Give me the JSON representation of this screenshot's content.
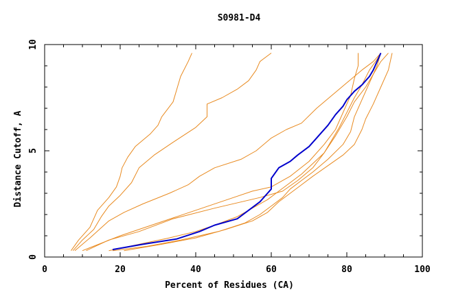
{
  "chart_data": {
    "type": "line",
    "title": "S0981-D4",
    "xlabel": "Percent of Residues (CA)",
    "ylabel": "Distance Cutoff, A",
    "xlim": [
      0,
      100
    ],
    "ylim": [
      0,
      10
    ],
    "x_ticks": [
      0,
      20,
      40,
      60,
      80,
      100
    ],
    "y_ticks": [
      0,
      5,
      10
    ],
    "grid": false,
    "colors": {
      "highlight": "#0000cc",
      "other": "#e8891e"
    },
    "series": [
      {
        "highlight": false,
        "points": [
          [
            7,
            0.3
          ],
          [
            9,
            0.8
          ],
          [
            12,
            1.4
          ],
          [
            14,
            2.2
          ],
          [
            17,
            2.8
          ],
          [
            19,
            3.3
          ],
          [
            20,
            3.8
          ],
          [
            20.5,
            4.2
          ],
          [
            22,
            4.7
          ],
          [
            24,
            5.2
          ],
          [
            28,
            5.8
          ],
          [
            30,
            6.2
          ],
          [
            31,
            6.6
          ],
          [
            34,
            7.3
          ],
          [
            35,
            7.9
          ],
          [
            36,
            8.5
          ],
          [
            38,
            9.2
          ],
          [
            39,
            9.6
          ]
        ]
      },
      {
        "highlight": false,
        "points": [
          [
            7.5,
            0.3
          ],
          [
            10,
            0.8
          ],
          [
            13,
            1.3
          ],
          [
            15,
            1.9
          ],
          [
            17,
            2.4
          ],
          [
            20,
            2.9
          ],
          [
            23,
            3.5
          ],
          [
            25,
            4.2
          ],
          [
            29,
            4.8
          ],
          [
            34,
            5.4
          ],
          [
            40,
            6.1
          ],
          [
            43,
            6.6
          ],
          [
            43,
            7.2
          ],
          [
            47,
            7.5
          ],
          [
            51,
            7.9
          ],
          [
            54,
            8.3
          ],
          [
            56,
            8.8
          ],
          [
            57,
            9.2
          ],
          [
            60,
            9.6
          ]
        ]
      },
      {
        "highlight": false,
        "points": [
          [
            8,
            0.3
          ],
          [
            12,
            0.9
          ],
          [
            17,
            1.7
          ],
          [
            21,
            2.1
          ],
          [
            26,
            2.5
          ],
          [
            33,
            3.0
          ],
          [
            38,
            3.4
          ],
          [
            41,
            3.8
          ],
          [
            45,
            4.2
          ],
          [
            52,
            4.6
          ],
          [
            56,
            5.0
          ],
          [
            60,
            5.6
          ],
          [
            64,
            6.0
          ],
          [
            68,
            6.3
          ],
          [
            72,
            7.0
          ],
          [
            76,
            7.6
          ],
          [
            80,
            8.2
          ],
          [
            84,
            8.8
          ],
          [
            87,
            9.2
          ],
          [
            89,
            9.6
          ]
        ]
      },
      {
        "highlight": false,
        "points": [
          [
            11,
            0.3
          ],
          [
            17,
            0.8
          ],
          [
            25,
            1.2
          ],
          [
            34,
            1.8
          ],
          [
            45,
            2.3
          ],
          [
            57,
            2.8
          ],
          [
            63,
            3.1
          ],
          [
            67,
            3.6
          ],
          [
            71,
            4.2
          ],
          [
            74,
            4.9
          ],
          [
            77,
            5.7
          ],
          [
            80,
            6.6
          ],
          [
            82,
            7.3
          ],
          [
            85,
            8.0
          ],
          [
            87,
            8.6
          ],
          [
            89,
            9.2
          ],
          [
            91,
            9.6
          ]
        ]
      },
      {
        "highlight": false,
        "points": [
          [
            17,
            0.3
          ],
          [
            25,
            0.6
          ],
          [
            33,
            0.9
          ],
          [
            40,
            1.2
          ],
          [
            45,
            1.5
          ],
          [
            51,
            1.9
          ],
          [
            55,
            2.3
          ],
          [
            59,
            2.7
          ],
          [
            62,
            3.1
          ],
          [
            65,
            3.5
          ],
          [
            68,
            3.9
          ],
          [
            71,
            4.4
          ],
          [
            74,
            4.9
          ],
          [
            76,
            5.5
          ],
          [
            78,
            6.1
          ],
          [
            80,
            6.8
          ],
          [
            82,
            7.5
          ],
          [
            84,
            8.1
          ],
          [
            86,
            8.8
          ],
          [
            88,
            9.3
          ],
          [
            89,
            9.6
          ]
        ]
      },
      {
        "highlight": false,
        "points": [
          [
            18,
            0.3
          ],
          [
            27,
            0.5
          ],
          [
            36,
            0.8
          ],
          [
            46,
            1.2
          ],
          [
            53,
            1.6
          ],
          [
            57,
            2.0
          ],
          [
            60,
            2.4
          ],
          [
            63,
            2.8
          ],
          [
            65,
            3.2
          ],
          [
            68,
            3.6
          ],
          [
            71,
            4.0
          ],
          [
            75,
            4.6
          ],
          [
            79,
            5.3
          ],
          [
            81,
            5.9
          ],
          [
            82,
            6.6
          ],
          [
            84,
            7.4
          ],
          [
            86,
            8.2
          ],
          [
            88,
            9.0
          ],
          [
            89,
            9.6
          ]
        ]
      },
      {
        "highlight": false,
        "points": [
          [
            21,
            0.3
          ],
          [
            31,
            0.6
          ],
          [
            40,
            0.9
          ],
          [
            48,
            1.3
          ],
          [
            55,
            1.7
          ],
          [
            59,
            2.1
          ],
          [
            62,
            2.6
          ],
          [
            65,
            3.0
          ],
          [
            68,
            3.4
          ],
          [
            71,
            3.8
          ],
          [
            75,
            4.3
          ],
          [
            79,
            4.8
          ],
          [
            82,
            5.3
          ],
          [
            84,
            6.0
          ],
          [
            85,
            6.5
          ],
          [
            87,
            7.2
          ],
          [
            89,
            8.0
          ],
          [
            91,
            8.8
          ],
          [
            92,
            9.6
          ]
        ]
      },
      {
        "highlight": false,
        "points": [
          [
            10,
            0.3
          ],
          [
            20,
            1.0
          ],
          [
            30,
            1.6
          ],
          [
            40,
            2.2
          ],
          [
            50,
            2.8
          ],
          [
            55,
            3.1
          ],
          [
            60,
            3.3
          ],
          [
            65,
            3.8
          ],
          [
            70,
            4.5
          ],
          [
            74,
            5.3
          ],
          [
            77,
            6.0
          ],
          [
            79,
            6.8
          ],
          [
            81,
            7.6
          ],
          [
            82,
            8.4
          ],
          [
            83,
            9.0
          ],
          [
            83,
            9.6
          ]
        ]
      },
      {
        "highlight": true,
        "points": [
          [
            18,
            0.35
          ],
          [
            26,
            0.6
          ],
          [
            35,
            0.85
          ],
          [
            41,
            1.2
          ],
          [
            45,
            1.5
          ],
          [
            51,
            1.8
          ],
          [
            54,
            2.2
          ],
          [
            57,
            2.6
          ],
          [
            59,
            3.0
          ],
          [
            60,
            3.2
          ],
          [
            60,
            3.7
          ],
          [
            62,
            4.2
          ],
          [
            65,
            4.5
          ],
          [
            67,
            4.8
          ],
          [
            70,
            5.2
          ],
          [
            72,
            5.6
          ],
          [
            73,
            5.8
          ],
          [
            75,
            6.2
          ],
          [
            77,
            6.7
          ],
          [
            79,
            7.1
          ],
          [
            80,
            7.4
          ],
          [
            82,
            7.8
          ],
          [
            84,
            8.1
          ],
          [
            86,
            8.5
          ],
          [
            87,
            8.8
          ],
          [
            88,
            9.2
          ],
          [
            89,
            9.6
          ]
        ]
      }
    ]
  }
}
